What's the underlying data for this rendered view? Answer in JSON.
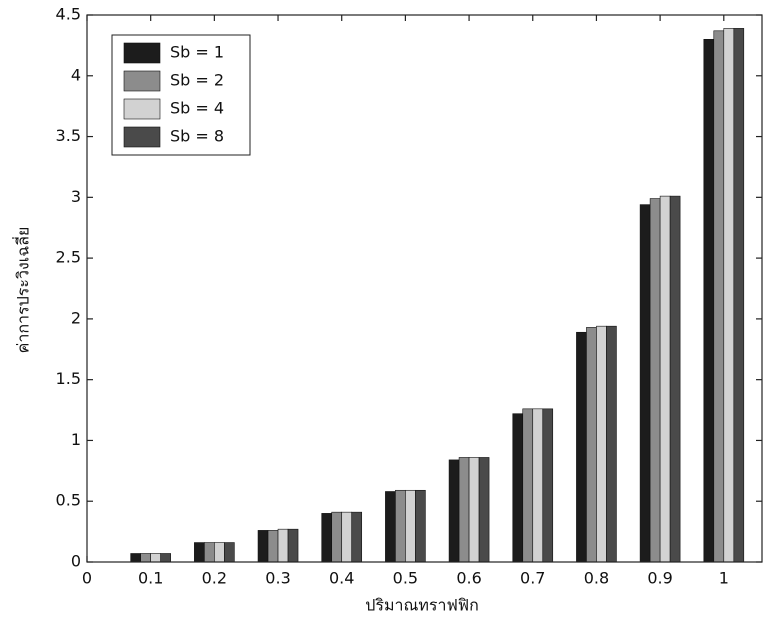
{
  "chart_data": {
    "type": "bar",
    "x_label": "ปริมาณทราฟฟิก",
    "y_label": "ค่าการประวิงเฉลี่ย",
    "x": [
      0.1,
      0.2,
      0.3,
      0.4,
      0.5,
      0.6,
      0.7,
      0.8,
      0.9,
      1
    ],
    "series": [
      {
        "name": "Sb = 1",
        "color": "#1c1c1c",
        "values": [
          0.07,
          0.16,
          0.26,
          0.4,
          0.58,
          0.84,
          1.22,
          1.89,
          2.94,
          4.3
        ]
      },
      {
        "name": "Sb = 2",
        "color": "#8c8c8c",
        "values": [
          0.07,
          0.16,
          0.26,
          0.41,
          0.59,
          0.86,
          1.26,
          1.93,
          2.99,
          4.37
        ]
      },
      {
        "name": "Sb = 4",
        "color": "#d2d2d2",
        "values": [
          0.07,
          0.16,
          0.27,
          0.41,
          0.59,
          0.86,
          1.26,
          1.94,
          3.01,
          4.39
        ]
      },
      {
        "name": "Sb = 8",
        "color": "#4a4a4a",
        "values": [
          0.07,
          0.16,
          0.27,
          0.41,
          0.59,
          0.86,
          1.26,
          1.94,
          3.01,
          4.39
        ]
      }
    ],
    "xlim": [
      0,
      1.06
    ],
    "xticks": [
      0,
      0.1,
      0.2,
      0.3,
      0.4,
      0.5,
      0.6,
      0.7,
      0.8,
      0.9,
      1
    ],
    "ylim": [
      0,
      4.5
    ],
    "yticks": [
      0,
      0.5,
      1,
      1.5,
      2,
      2.5,
      3,
      3.5,
      4,
      4.5
    ],
    "legend": "upper-left"
  }
}
